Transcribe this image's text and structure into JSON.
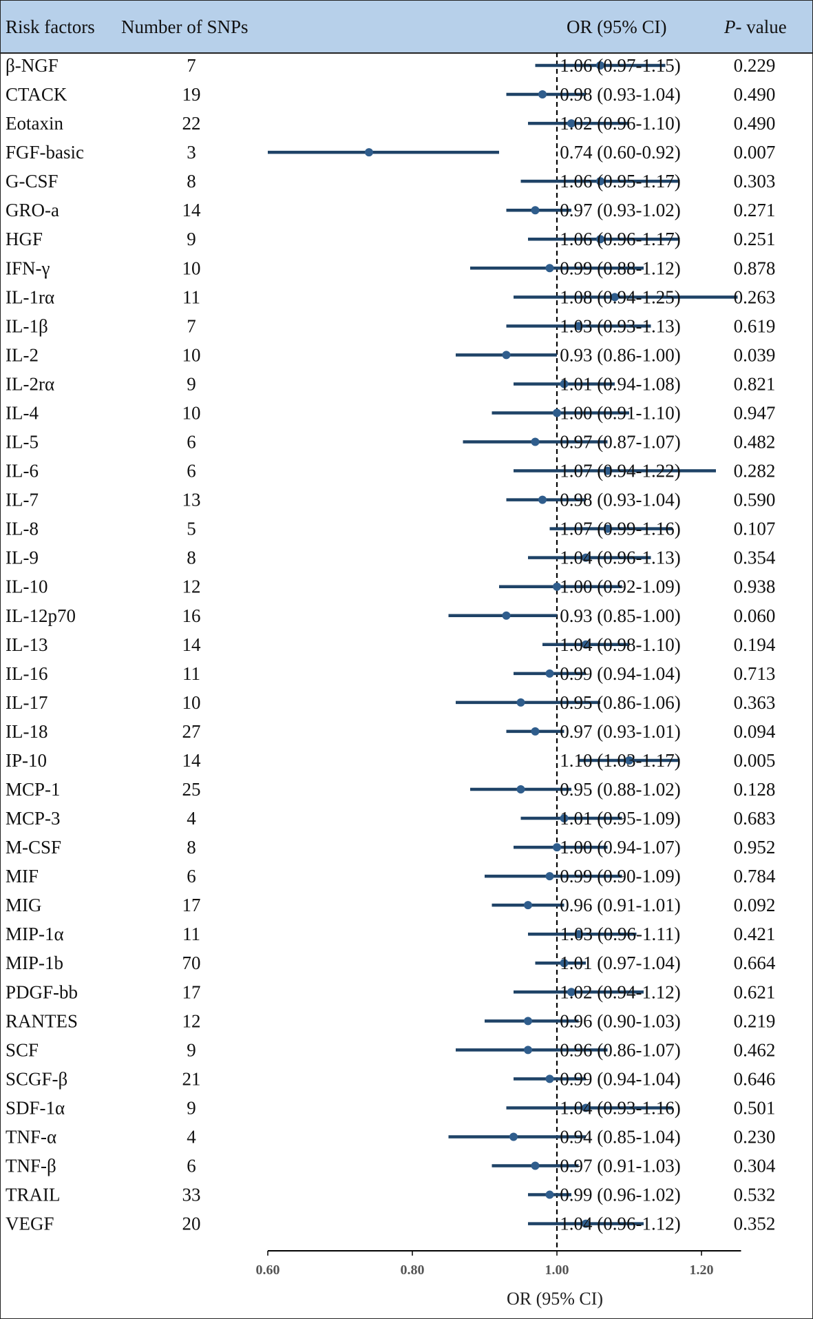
{
  "header": {
    "risk_factors": "Risk factors",
    "snps": "Number of SNPs",
    "or_ci": "OR (95% CI)",
    "p_italic": "P",
    "p_rest": "- value"
  },
  "chart_data": {
    "type": "forest",
    "xlabel": "OR (95% CI)",
    "xlim": [
      0.6,
      1.25
    ],
    "xticks": [
      0.6,
      0.8,
      1.0,
      1.2
    ],
    "xtick_labels": [
      "0.60",
      "0.80",
      "1.00",
      "1.20"
    ],
    "reference_line": 1.0,
    "colors": {
      "point": "#2f5d8c",
      "ci": "#1f4367",
      "header_bg": "#b7d0ea"
    },
    "rows": [
      {
        "factor": "β-NGF",
        "snps": "7",
        "or": 1.06,
        "lo": 0.97,
        "hi": 1.15,
        "ci_text": "1.06 (0.97-1.15)",
        "p": "0.229"
      },
      {
        "factor": "CTACK",
        "snps": "19",
        "or": 0.98,
        "lo": 0.93,
        "hi": 1.04,
        "ci_text": "0.98 (0.93-1.04)",
        "p": "0.490"
      },
      {
        "factor": "Eotaxin",
        "snps": "22",
        "or": 1.02,
        "lo": 0.96,
        "hi": 1.1,
        "ci_text": "1.02 (0.96-1.10)",
        "p": "0.490"
      },
      {
        "factor": "FGF-basic",
        "snps": "3",
        "or": 0.74,
        "lo": 0.6,
        "hi": 0.92,
        "ci_text": "0.74 (0.60-0.92)",
        "p": "0.007"
      },
      {
        "factor": "G-CSF",
        "snps": "8",
        "or": 1.06,
        "lo": 0.95,
        "hi": 1.17,
        "ci_text": "1.06 (0.95-1.17)",
        "p": "0.303"
      },
      {
        "factor": "GRO-a",
        "snps": "14",
        "or": 0.97,
        "lo": 0.93,
        "hi": 1.02,
        "ci_text": "0.97 (0.93-1.02)",
        "p": "0.271"
      },
      {
        "factor": "HGF",
        "snps": "9",
        "or": 1.06,
        "lo": 0.96,
        "hi": 1.17,
        "ci_text": "1.06 (0.96-1.17)",
        "p": "0.251"
      },
      {
        "factor": "IFN-γ",
        "snps": "10",
        "or": 0.99,
        "lo": 0.88,
        "hi": 1.12,
        "ci_text": "0.99 (0.88-1.12)",
        "p": "0.878"
      },
      {
        "factor": "IL-1rα",
        "snps": "11",
        "or": 1.08,
        "lo": 0.94,
        "hi": 1.25,
        "ci_text": "1.08 (0.94-1.25)",
        "p": "0.263"
      },
      {
        "factor": "IL-1β",
        "snps": "7",
        "or": 1.03,
        "lo": 0.93,
        "hi": 1.13,
        "ci_text": "1.03 (0.93-1.13)",
        "p": "0.619"
      },
      {
        "factor": "IL-2",
        "snps": "10",
        "or": 0.93,
        "lo": 0.86,
        "hi": 1.0,
        "ci_text": "0.93 (0.86-1.00)",
        "p": "0.039"
      },
      {
        "factor": "IL-2rα",
        "snps": "9",
        "or": 1.01,
        "lo": 0.94,
        "hi": 1.08,
        "ci_text": "1.01 (0.94-1.08)",
        "p": "0.821"
      },
      {
        "factor": "IL-4",
        "snps": "10",
        "or": 1.0,
        "lo": 0.91,
        "hi": 1.1,
        "ci_text": "1.00 (0.91-1.10)",
        "p": "0.947"
      },
      {
        "factor": "IL-5",
        "snps": "6",
        "or": 0.97,
        "lo": 0.87,
        "hi": 1.07,
        "ci_text": "0.97 (0.87-1.07)",
        "p": "0.482"
      },
      {
        "factor": "IL-6",
        "snps": "6",
        "or": 1.07,
        "lo": 0.94,
        "hi": 1.22,
        "ci_text": "1.07 (0.94-1.22)",
        "p": "0.282"
      },
      {
        "factor": "IL-7",
        "snps": "13",
        "or": 0.98,
        "lo": 0.93,
        "hi": 1.04,
        "ci_text": "0.98 (0.93-1.04)",
        "p": "0.590"
      },
      {
        "factor": "IL-8",
        "snps": "5",
        "or": 1.07,
        "lo": 0.99,
        "hi": 1.16,
        "ci_text": "1.07 (0.99-1.16)",
        "p": "0.107"
      },
      {
        "factor": "IL-9",
        "snps": "8",
        "or": 1.04,
        "lo": 0.96,
        "hi": 1.13,
        "ci_text": "1.04 (0.96-1.13)",
        "p": "0.354"
      },
      {
        "factor": "IL-10",
        "snps": "12",
        "or": 1.0,
        "lo": 0.92,
        "hi": 1.09,
        "ci_text": "1.00 (0.92-1.09)",
        "p": "0.938"
      },
      {
        "factor": "IL-12p70",
        "snps": "16",
        "or": 0.93,
        "lo": 0.85,
        "hi": 1.0,
        "ci_text": "0.93 (0.85-1.00)",
        "p": "0.060"
      },
      {
        "factor": "IL-13",
        "snps": "14",
        "or": 1.04,
        "lo": 0.98,
        "hi": 1.1,
        "ci_text": "1.04 (0.98-1.10)",
        "p": "0.194"
      },
      {
        "factor": "IL-16",
        "snps": "11",
        "or": 0.99,
        "lo": 0.94,
        "hi": 1.04,
        "ci_text": "0.99 (0.94-1.04)",
        "p": "0.713"
      },
      {
        "factor": "IL-17",
        "snps": "10",
        "or": 0.95,
        "lo": 0.86,
        "hi": 1.06,
        "ci_text": "0.95 (0.86-1.06)",
        "p": "0.363"
      },
      {
        "factor": "IL-18",
        "snps": "27",
        "or": 0.97,
        "lo": 0.93,
        "hi": 1.01,
        "ci_text": "0.97 (0.93-1.01)",
        "p": "0.094"
      },
      {
        "factor": "IP-10",
        "snps": "14",
        "or": 1.1,
        "lo": 1.03,
        "hi": 1.17,
        "ci_text": "1.10 (1.03-1.17)",
        "p": "0.005"
      },
      {
        "factor": "MCP-1",
        "snps": "25",
        "or": 0.95,
        "lo": 0.88,
        "hi": 1.02,
        "ci_text": "0.95 (0.88-1.02)",
        "p": "0.128"
      },
      {
        "factor": "MCP-3",
        "snps": "4",
        "or": 1.01,
        "lo": 0.95,
        "hi": 1.09,
        "ci_text": "1.01 (0.95-1.09)",
        "p": "0.683"
      },
      {
        "factor": "M-CSF",
        "snps": "8",
        "or": 1.0,
        "lo": 0.94,
        "hi": 1.07,
        "ci_text": "1.00 (0.94-1.07)",
        "p": "0.952"
      },
      {
        "factor": "MIF",
        "snps": "6",
        "or": 0.99,
        "lo": 0.9,
        "hi": 1.09,
        "ci_text": "0.99 (0.90-1.09)",
        "p": "0.784"
      },
      {
        "factor": "MIG",
        "snps": "17",
        "or": 0.96,
        "lo": 0.91,
        "hi": 1.01,
        "ci_text": "0.96 (0.91-1.01)",
        "p": "0.092"
      },
      {
        "factor": "MIP-1α",
        "snps": "11",
        "or": 1.03,
        "lo": 0.96,
        "hi": 1.11,
        "ci_text": "1.03 (0.96-1.11)",
        "p": "0.421"
      },
      {
        "factor": "MIP-1b",
        "snps": "70",
        "or": 1.01,
        "lo": 0.97,
        "hi": 1.04,
        "ci_text": "1.01 (0.97-1.04)",
        "p": "0.664"
      },
      {
        "factor": "PDGF-bb",
        "snps": "17",
        "or": 1.02,
        "lo": 0.94,
        "hi": 1.12,
        "ci_text": "1.02 (0.94-1.12)",
        "p": "0.621"
      },
      {
        "factor": "RANTES",
        "snps": "12",
        "or": 0.96,
        "lo": 0.9,
        "hi": 1.03,
        "ci_text": "0.96 (0.90-1.03)",
        "p": "0.219"
      },
      {
        "factor": "SCF",
        "snps": "9",
        "or": 0.96,
        "lo": 0.86,
        "hi": 1.07,
        "ci_text": "0.96 (0.86-1.07)",
        "p": "0.462"
      },
      {
        "factor": "SCGF-β",
        "snps": "21",
        "or": 0.99,
        "lo": 0.94,
        "hi": 1.04,
        "ci_text": "0.99 (0.94-1.04)",
        "p": "0.646"
      },
      {
        "factor": "SDF-1α",
        "snps": "9",
        "or": 1.04,
        "lo": 0.93,
        "hi": 1.16,
        "ci_text": "1.04 (0.93-1.16)",
        "p": "0.501"
      },
      {
        "factor": "TNF-α",
        "snps": "4",
        "or": 0.94,
        "lo": 0.85,
        "hi": 1.04,
        "ci_text": "0.94 (0.85-1.04)",
        "p": "0.230"
      },
      {
        "factor": "TNF-β",
        "snps": "6",
        "or": 0.97,
        "lo": 0.91,
        "hi": 1.03,
        "ci_text": "0.97 (0.91-1.03)",
        "p": "0.304"
      },
      {
        "factor": "TRAIL",
        "snps": "33",
        "or": 0.99,
        "lo": 0.96,
        "hi": 1.02,
        "ci_text": "0.99 (0.96-1.02)",
        "p": "0.532"
      },
      {
        "factor": "VEGF",
        "snps": "20",
        "or": 1.04,
        "lo": 0.96,
        "hi": 1.12,
        "ci_text": "1.04 (0.96-1.12)",
        "p": "0.352"
      }
    ]
  }
}
